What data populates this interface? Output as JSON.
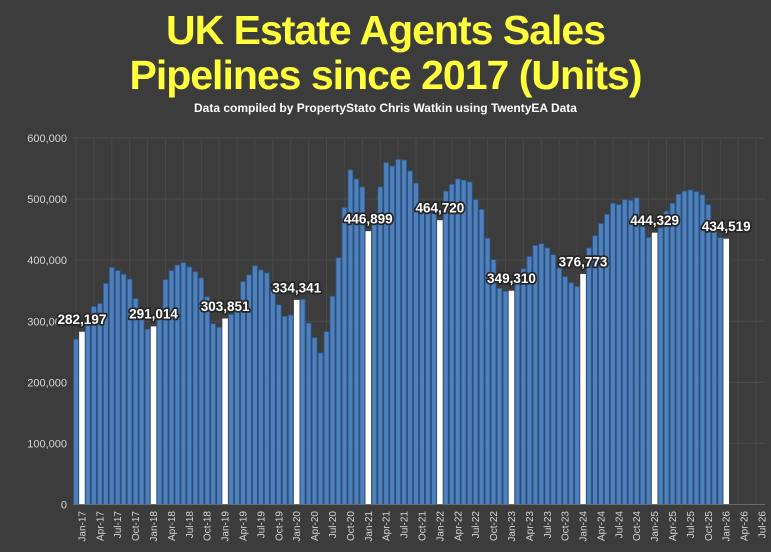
{
  "header": {
    "title_line1": "UK Estate Agents Sales",
    "title_line2": "Pipelines since 2017 (Units)",
    "subtitle": "Data compiled by PropertyStato Chris Watkin using TwentyEA Data"
  },
  "colors": {
    "background": "#3C3C3C",
    "title": "#FFFF3B",
    "subtitle": "#FFFFFF",
    "bar_fill": "#4E80BC",
    "bar_border": "#2C5890",
    "highlight_bar": "#FFFFFF",
    "gridline": "#4B4B4B",
    "vertical_gridline": "#484848",
    "axis_line": "#6A6A6A",
    "axis_text": "#D6D6D6",
    "data_label_text": "#FFFFFF",
    "data_label_outline": "#262626"
  },
  "chart_data": {
    "type": "bar",
    "title": "UK Estate Agents Sales Pipelines since 2017 (Units)",
    "xlabel": "",
    "ylabel": "",
    "ylim": [
      0,
      600000
    ],
    "y_tick_step": 100000,
    "grid": true,
    "y_tick_labels": [
      "0",
      "100,000",
      "200,000",
      "300,000",
      "400,000",
      "500,000",
      "600,000"
    ],
    "x_tick_labels": [
      "Jan-17",
      "Apr-17",
      "Jul-17",
      "Oct-17",
      "Jan-18",
      "Apr-18",
      "Jul-18",
      "Oct-18",
      "Jan-19",
      "Apr-19",
      "Jul-19",
      "Oct-19",
      "Jan-20",
      "Apr-20",
      "Jul-20",
      "Oct-20",
      "Jan-21",
      "Apr-21",
      "Jul-21",
      "Oct-21",
      "Jan-22",
      "Apr-22",
      "Jul-22",
      "Oct-22",
      "Jan-23",
      "Apr-23",
      "Jul-23",
      "Oct-23",
      "Jan-24",
      "Apr-24",
      "Jul-24",
      "Oct-24",
      "Jan-25",
      "Apr-25",
      "Jul-25",
      "Oct-25",
      "Jan-26",
      "Apr-26",
      "Jul-26"
    ],
    "x_total_slots": 116,
    "values": [
      270500,
      282197,
      297000,
      324000,
      329000,
      362000,
      388000,
      383000,
      377000,
      369000,
      337000,
      303000,
      287000,
      291014,
      322000,
      368000,
      383000,
      392000,
      396000,
      389000,
      381000,
      371000,
      340000,
      296000,
      290000,
      303851,
      311000,
      335000,
      365000,
      376000,
      391000,
      384000,
      379000,
      352000,
      327000,
      308000,
      310000,
      334341,
      336000,
      297000,
      273000,
      248000,
      283000,
      341000,
      404000,
      486000,
      548000,
      533000,
      520000,
      446899,
      466000,
      520000,
      560000,
      554000,
      565000,
      564000,
      546000,
      526000,
      496000,
      482000,
      476000,
      464720,
      513000,
      524000,
      533000,
      531000,
      528000,
      499000,
      483000,
      436000,
      401000,
      354000,
      349000,
      349310,
      368000,
      386000,
      406000,
      424000,
      427000,
      420000,
      409000,
      387000,
      373000,
      363000,
      357000,
      376773,
      420000,
      440000,
      460000,
      475000,
      493000,
      491000,
      499000,
      498000,
      502000,
      465000,
      437000,
      444329,
      453000,
      480000,
      493000,
      508000,
      513000,
      515000,
      512000,
      507000,
      491000,
      455000,
      437000,
      434519
    ],
    "highlights": [
      {
        "index": 1,
        "label": "282,197"
      },
      {
        "index": 13,
        "label": "291,014"
      },
      {
        "index": 25,
        "label": "303,851"
      },
      {
        "index": 37,
        "label": "334,341"
      },
      {
        "index": 49,
        "label": "446,899"
      },
      {
        "index": 61,
        "label": "464,720"
      },
      {
        "index": 73,
        "label": "349,310"
      },
      {
        "index": 85,
        "label": "376,773"
      },
      {
        "index": 97,
        "label": "444,329"
      },
      {
        "index": 109,
        "label": "434,519"
      }
    ],
    "legend": null
  }
}
